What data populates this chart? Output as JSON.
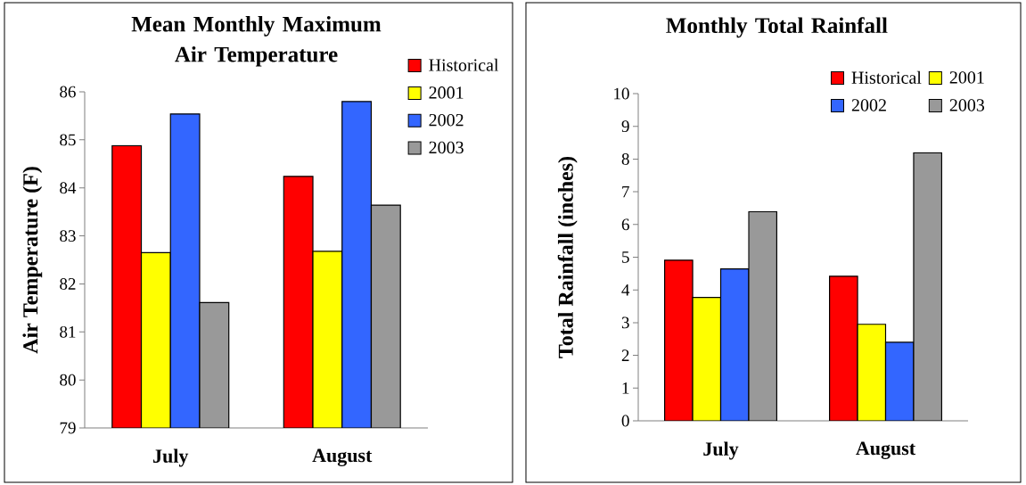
{
  "chart_data": [
    {
      "type": "bar",
      "title": "Mean Monthly Maximum Air Temperature",
      "ylabel": "Air Temperature (F)",
      "categories": [
        "July",
        "August"
      ],
      "series": [
        {
          "name": "Historical",
          "color": "#ff0000",
          "values": [
            84.88,
            84.24
          ]
        },
        {
          "name": "2001",
          "color": "#ffff00",
          "values": [
            82.65,
            82.68
          ]
        },
        {
          "name": "2002",
          "color": "#3366ff",
          "values": [
            85.54,
            85.8
          ]
        },
        {
          "name": "2003",
          "color": "#999999",
          "values": [
            81.61,
            83.64
          ]
        }
      ],
      "ylim": [
        79,
        86
      ],
      "yticks": [
        79,
        80,
        81,
        82,
        83,
        84,
        85,
        86
      ],
      "legend": "top right"
    },
    {
      "type": "bar",
      "title": "Monthly Total Rainfall",
      "ylabel": "Total Rainfall (inches)",
      "categories": [
        "July",
        "August"
      ],
      "series": [
        {
          "name": "Historical",
          "color": "#ff0000",
          "values": [
            4.91,
            4.42
          ]
        },
        {
          "name": "2001",
          "color": "#ffff00",
          "values": [
            3.77,
            2.95
          ]
        },
        {
          "name": "2002",
          "color": "#3366ff",
          "values": [
            4.64,
            2.4
          ]
        },
        {
          "name": "2003",
          "color": "#999999",
          "values": [
            6.39,
            8.19
          ]
        }
      ],
      "ylim": [
        0,
        10
      ],
      "yticks": [
        0,
        1,
        2,
        3,
        4,
        5,
        6,
        7,
        8,
        9,
        10
      ],
      "legend": "top right"
    }
  ]
}
